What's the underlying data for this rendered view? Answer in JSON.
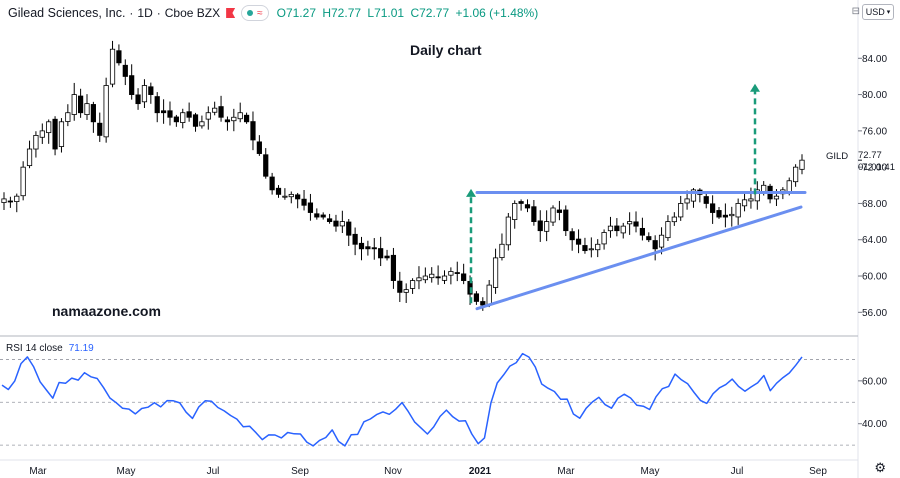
{
  "header": {
    "symbol": "Gilead Sciences, Inc.",
    "interval": "1D",
    "exchange": "Cboe BZX",
    "open": "O71.27",
    "high": "H72.77",
    "low": "L71.01",
    "close": "C72.77",
    "change": "+1.06 (+1.48%)"
  },
  "currency_button": "USD",
  "watermark": "namaazone.com",
  "price_tag": {
    "symbol": "GILD",
    "price": "72.77",
    "countdown": "01:01:41"
  },
  "colors": {
    "candle": "#000000",
    "trendline": "#6b8ff0",
    "arrow": "#1a9b7a",
    "rsi": "#2962ff",
    "grid": "#9598a1"
  },
  "chart_data": [
    {
      "type": "candlestick",
      "title": "Daily chart",
      "price_axis_ticks": [
        "84.00",
        "80.00",
        "76.00",
        "72.00",
        "68.00",
        "64.00",
        "60.00",
        "56.00"
      ],
      "ylim": [
        53.5,
        88
      ],
      "x_ticks": [
        "Mar",
        "May",
        "Jul",
        "Sep",
        "Nov",
        "2021",
        "Mar",
        "May",
        "Jul",
        "Sep"
      ],
      "series": [
        {
          "values": [
            68.5,
            68.2,
            68.8,
            72,
            74,
            75.5,
            76,
            77,
            74,
            77,
            78,
            80,
            78,
            79,
            77,
            75.5,
            81,
            85,
            83.5,
            82,
            80,
            79,
            81,
            80,
            78,
            78,
            77.5,
            77,
            78,
            77.5,
            76.5,
            77,
            78,
            78.5,
            77.5,
            77,
            77.5,
            78,
            77,
            75,
            73.5,
            71,
            69.5,
            69,
            68.8,
            69,
            68.5,
            67.8,
            67,
            66.5,
            66.5,
            66,
            65.5,
            66,
            64.5,
            63.5,
            63,
            63,
            63,
            62,
            62,
            59.5,
            58.2,
            58.5,
            59.5,
            59.8,
            60,
            60.2,
            59.8,
            60,
            60.5,
            60.3,
            59.5,
            58,
            57.2,
            56.8,
            59,
            62,
            63.5,
            66.5,
            68,
            68,
            67.5,
            66,
            65,
            66,
            67.5,
            67,
            65,
            64,
            63.5,
            62.8,
            63,
            63.5,
            64.8,
            65.5,
            65,
            65.5,
            66,
            65.5,
            64.5,
            64,
            63,
            64.5,
            66,
            66.5,
            68,
            68.5,
            69.5,
            69,
            68,
            67,
            66.5,
            66.5,
            66.8,
            68,
            68.4,
            68.5,
            69.5,
            70,
            68.5,
            68.8,
            69.5,
            70.5,
            72,
            72.77
          ]
        }
      ],
      "annotations": [
        "ascending triangle: horizontal resistance near 69.2",
        "rising support line from ~56.5 to ~67.6",
        "dashed projection arrows up from ~57 to ~69.5 and from ~69 to ~81.2"
      ]
    },
    {
      "type": "line",
      "name": "RSI 14 close",
      "last_value": "71.19",
      "ticks": [
        "60.00",
        "40.00"
      ],
      "levels": [
        70,
        50,
        30
      ],
      "ylim": [
        24,
        80
      ],
      "series": [
        {
          "name": "RSI",
          "values": [
            58,
            55,
            60,
            68,
            70,
            66,
            60,
            55,
            52,
            60,
            58,
            62,
            60,
            64,
            62,
            60,
            58,
            52,
            50,
            48,
            46,
            44,
            48,
            47,
            51,
            48,
            50,
            52,
            50,
            46,
            44,
            48,
            50,
            51,
            49,
            46,
            44,
            42,
            40,
            38,
            36,
            32,
            34,
            36,
            32,
            35,
            34,
            36,
            32,
            30,
            31,
            33,
            36,
            32,
            30,
            34,
            36,
            40,
            42,
            44,
            46,
            44,
            48,
            50,
            46,
            42,
            38,
            36,
            40,
            42,
            46,
            44,
            42,
            40,
            36,
            30,
            33,
            50,
            58,
            64,
            68,
            70,
            72,
            70,
            66,
            60,
            58,
            56,
            52,
            50,
            46,
            44,
            48,
            50,
            52,
            50,
            48,
            52,
            55,
            52,
            50,
            48,
            46,
            52,
            55,
            58,
            62,
            60,
            58,
            56,
            52,
            50,
            54,
            56,
            58,
            60,
            56,
            54,
            58,
            60,
            62,
            56,
            58,
            62,
            64,
            68,
            71.19
          ]
        }
      ]
    }
  ]
}
